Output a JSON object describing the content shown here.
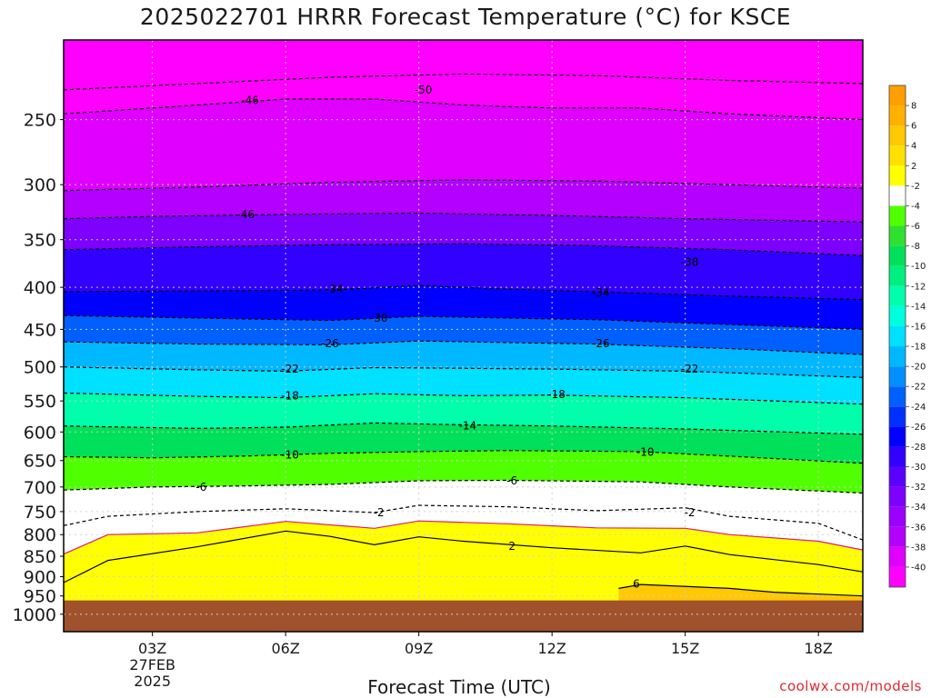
{
  "title": "2025022701 HRRR Forecast Temperature (°C) for KSCE",
  "xlabel": "Forecast Time (UTC)",
  "credit": "coolwx.com/models",
  "chart_data": {
    "type": "heatmap",
    "title": "2025022701 HRRR Forecast Temperature (°C) for KSCE",
    "xlabel": "Forecast Time (UTC)",
    "ylabel": "",
    "x_range_hours": [
      1,
      19
    ],
    "y_range_hpa": [
      200,
      1050
    ],
    "y_scale": "log",
    "x_ticks": [
      {
        "hour": 3,
        "lines": [
          "03Z",
          "27FEB",
          "2025"
        ]
      },
      {
        "hour": 6,
        "lines": [
          "06Z"
        ]
      },
      {
        "hour": 9,
        "lines": [
          "09Z"
        ]
      },
      {
        "hour": 12,
        "lines": [
          "12Z"
        ]
      },
      {
        "hour": 15,
        "lines": [
          "15Z"
        ]
      },
      {
        "hour": 18,
        "lines": [
          "18Z"
        ]
      }
    ],
    "y_ticks": [
      250,
      300,
      350,
      400,
      450,
      500,
      550,
      600,
      650,
      700,
      750,
      800,
      850,
      900,
      950,
      1000
    ],
    "grid": true,
    "surface_pressure_hpa": 962,
    "surface_color": "#a0522d",
    "colorbar": {
      "placement": "right",
      "colors": [
        "#ff00ff",
        "#df00ff",
        "#b300ff",
        "#9a00ff",
        "#7e00ff",
        "#5a00ff",
        "#3200ff",
        "#0000ff",
        "#0030ff",
        "#0060ff",
        "#0090ff",
        "#00b8ff",
        "#00e0ff",
        "#00ffdc",
        "#00ffaa",
        "#00f080",
        "#00e05a",
        "#30e030",
        "#50ff00",
        "#ffffff",
        "#ffff00",
        "#ffe000",
        "#ffc800",
        "#ffb000",
        "#ff9e00"
      ],
      "labels": [
        "-40",
        "-38",
        "-36",
        "-34",
        "-32",
        "-30",
        "-28",
        "-26",
        "-24",
        "-22",
        "-20",
        "-18",
        "-16",
        "-14",
        "-12",
        "-10",
        "-8",
        "-6",
        "-4",
        "-2",
        "2",
        "4",
        "6",
        "8"
      ]
    },
    "series": [
      {
        "name": "-50",
        "values": [
          [
            1,
            230
          ],
          [
            4,
            226
          ],
          [
            7,
            222
          ],
          [
            10,
            220
          ],
          [
            13,
            221
          ],
          [
            16,
            224
          ],
          [
            19,
            226
          ]
        ]
      },
      {
        "name": "-46",
        "values": [
          [
            1,
            246
          ],
          [
            4,
            240
          ],
          [
            6,
            236
          ],
          [
            8,
            236
          ],
          [
            10,
            240
          ],
          [
            12,
            242
          ],
          [
            14,
            242
          ],
          [
            16,
            246
          ],
          [
            19,
            250
          ]
        ]
      },
      {
        "name": "-46",
        "values": [
          [
            1,
            305
          ],
          [
            4,
            302
          ],
          [
            7,
            298
          ],
          [
            10,
            296
          ],
          [
            13,
            297
          ],
          [
            16,
            300
          ],
          [
            19,
            303
          ]
        ]
      },
      {
        "name": "-46",
        "values": [
          [
            1,
            330
          ],
          [
            3,
            328
          ],
          [
            6,
            326
          ],
          [
            9,
            325
          ],
          [
            12,
            327
          ],
          [
            15,
            330
          ],
          [
            19,
            333
          ]
        ]
      },
      {
        "name": "-38",
        "values": [
          [
            1,
            360
          ],
          [
            4,
            357
          ],
          [
            7,
            355
          ],
          [
            10,
            354
          ],
          [
            13,
            356
          ],
          [
            16,
            360
          ],
          [
            19,
            366
          ]
        ]
      },
      {
        "name": "-34",
        "values": [
          [
            1,
            405
          ],
          [
            4,
            404
          ],
          [
            7,
            403
          ],
          [
            9,
            398
          ],
          [
            11,
            402
          ],
          [
            13,
            405
          ],
          [
            16,
            410
          ],
          [
            19,
            414
          ]
        ]
      },
      {
        "name": "-30",
        "values": [
          [
            1,
            433
          ],
          [
            4,
            436
          ],
          [
            7,
            439
          ],
          [
            9,
            434
          ],
          [
            11,
            436
          ],
          [
            13,
            438
          ],
          [
            16,
            444
          ],
          [
            19,
            450
          ]
        ]
      },
      {
        "name": "-26",
        "values": [
          [
            1,
            466
          ],
          [
            4,
            469
          ],
          [
            7,
            470
          ],
          [
            9,
            465
          ],
          [
            11,
            467
          ],
          [
            13,
            469
          ],
          [
            16,
            475
          ],
          [
            19,
            483
          ]
        ]
      },
      {
        "name": "-22",
        "values": [
          [
            1,
            500
          ],
          [
            4,
            504
          ],
          [
            6,
            506
          ],
          [
            8,
            501
          ],
          [
            10,
            502
          ],
          [
            12,
            503
          ],
          [
            15,
            506
          ],
          [
            19,
            515
          ]
        ]
      },
      {
        "name": "-18",
        "values": [
          [
            1,
            538
          ],
          [
            4,
            543
          ],
          [
            6,
            545
          ],
          [
            8,
            539
          ],
          [
            10,
            542
          ],
          [
            12,
            541
          ],
          [
            15,
            545
          ],
          [
            19,
            555
          ]
        ]
      },
      {
        "name": "-14",
        "values": [
          [
            1,
            590
          ],
          [
            4,
            594
          ],
          [
            6,
            592
          ],
          [
            8,
            585
          ],
          [
            10,
            588
          ],
          [
            12,
            590
          ],
          [
            15,
            595
          ],
          [
            19,
            604
          ]
        ]
      },
      {
        "name": "-10",
        "values": [
          [
            1,
            643
          ],
          [
            3,
            645
          ],
          [
            5,
            642
          ],
          [
            7,
            637
          ],
          [
            9,
            634
          ],
          [
            11,
            632
          ],
          [
            14,
            634
          ],
          [
            16,
            642
          ],
          [
            19,
            655
          ]
        ]
      },
      {
        "name": "-6",
        "values": [
          [
            1,
            706
          ],
          [
            3,
            700
          ],
          [
            5,
            698
          ],
          [
            7,
            695
          ],
          [
            9,
            688
          ],
          [
            11,
            687
          ],
          [
            14,
            690
          ],
          [
            16,
            700
          ],
          [
            19,
            712
          ]
        ]
      },
      {
        "name": "-2",
        "values": [
          [
            1,
            780
          ],
          [
            2,
            760
          ],
          [
            4,
            750
          ],
          [
            6,
            744
          ],
          [
            8,
            752
          ],
          [
            9,
            737
          ],
          [
            11,
            740
          ],
          [
            13,
            748
          ],
          [
            15,
            742
          ],
          [
            16,
            760
          ],
          [
            18,
            775
          ],
          [
            19,
            812
          ]
        ]
      },
      {
        "name": "0",
        "values": [
          [
            1,
            845
          ],
          [
            2,
            800
          ],
          [
            4,
            796
          ],
          [
            6,
            771
          ],
          [
            8,
            786
          ],
          [
            9,
            770
          ],
          [
            11,
            776
          ],
          [
            13,
            785
          ],
          [
            15,
            786
          ],
          [
            16,
            800
          ],
          [
            18,
            815
          ],
          [
            19,
            835
          ]
        ]
      },
      {
        "name": "2",
        "values": [
          [
            1,
            915
          ],
          [
            2,
            860
          ],
          [
            4,
            828
          ],
          [
            6,
            792
          ],
          [
            7,
            804
          ],
          [
            8,
            823
          ],
          [
            9,
            805
          ],
          [
            10,
            815
          ],
          [
            12,
            830
          ],
          [
            14,
            842
          ],
          [
            15,
            826
          ],
          [
            16,
            846
          ],
          [
            18,
            870
          ],
          [
            19,
            888
          ]
        ]
      },
      {
        "name": "6",
        "values": [
          [
            13.5,
            930
          ],
          [
            14,
            920
          ],
          [
            16,
            930
          ],
          [
            17,
            940
          ],
          [
            19,
            950
          ]
        ]
      }
    ],
    "contour_labels": [
      {
        "text": "-46",
        "x": 5.2,
        "y": 237
      },
      {
        "text": "-50",
        "x": 9.1,
        "y": 230
      },
      {
        "text": "-46",
        "x": 5.1,
        "y": 326
      },
      {
        "text": "-38",
        "x": 15.1,
        "y": 373
      },
      {
        "text": "-34",
        "x": 7.1,
        "y": 402
      },
      {
        "text": "-34",
        "x": 13.1,
        "y": 406
      },
      {
        "text": "-30",
        "x": 8.1,
        "y": 436
      },
      {
        "text": "-26",
        "x": 7.0,
        "y": 468
      },
      {
        "text": "-26",
        "x": 13.1,
        "y": 468
      },
      {
        "text": "-22",
        "x": 6.1,
        "y": 503
      },
      {
        "text": "-22",
        "x": 15.1,
        "y": 503
      },
      {
        "text": "-18",
        "x": 6.1,
        "y": 542
      },
      {
        "text": "-18",
        "x": 12.1,
        "y": 540
      },
      {
        "text": "-14",
        "x": 10.1,
        "y": 590
      },
      {
        "text": "-10",
        "x": 6.1,
        "y": 640
      },
      {
        "text": "-10",
        "x": 14.1,
        "y": 635
      },
      {
        "text": "-6",
        "x": 4.1,
        "y": 700
      },
      {
        "text": "-6",
        "x": 11.1,
        "y": 688
      },
      {
        "text": "-2",
        "x": 8.1,
        "y": 752
      },
      {
        "text": "-2",
        "x": 15.1,
        "y": 752
      },
      {
        "text": "2",
        "x": 11.1,
        "y": 826
      },
      {
        "text": "6",
        "x": 13.9,
        "y": 918
      }
    ]
  }
}
